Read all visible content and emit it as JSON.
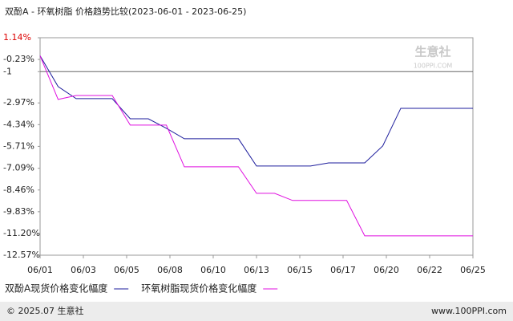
{
  "chart_data": {
    "type": "line",
    "title": "双酚A - 环氧树脂 价格趋势比较(2023-06-01 - 2023-06-25)",
    "watermark": {
      "name": "生意社",
      "site": "100PPI.COM"
    },
    "x": [
      0,
      1,
      2,
      3,
      4,
      5,
      6,
      7,
      8,
      9,
      10,
      11,
      12,
      13,
      14,
      15,
      16,
      17,
      18,
      19,
      20,
      21,
      22,
      23,
      24
    ],
    "xlim": [
      0,
      24
    ],
    "xticks": [
      {
        "value": 0,
        "label": "06/01"
      },
      {
        "value": 2.4,
        "label": "06/03"
      },
      {
        "value": 4.8,
        "label": "06/05"
      },
      {
        "value": 7.2,
        "label": "06/08"
      },
      {
        "value": 9.6,
        "label": "06/10"
      },
      {
        "value": 12,
        "label": "06/13"
      },
      {
        "value": 14.4,
        "label": "06/15"
      },
      {
        "value": 16.8,
        "label": "06/17"
      },
      {
        "value": 19.2,
        "label": "06/20"
      },
      {
        "value": 21.6,
        "label": "06/22"
      },
      {
        "value": 24,
        "label": "06/25"
      }
    ],
    "ylim": [
      -12.57,
      1.14
    ],
    "yticks": [
      {
        "value": 1.14,
        "label": "1.14%"
      },
      {
        "value": -0.23,
        "label": "-0.23%"
      },
      -1,
      {
        "value": -2.97,
        "label": "-2.97%"
      },
      {
        "value": -4.34,
        "label": "-4.34%"
      },
      {
        "value": -5.71,
        "label": "-5.71%"
      },
      {
        "value": -7.09,
        "label": "-7.09%"
      },
      {
        "value": -8.46,
        "label": "-8.46%"
      },
      {
        "value": -9.83,
        "label": "-9.83%"
      },
      {
        "value": -11.2,
        "label": "-11.20%"
      },
      {
        "value": -12.57,
        "label": "-12.57%"
      }
    ],
    "hline": -1,
    "grid": false,
    "series": [
      {
        "name": "双酚A现货价格变化幅度",
        "color": "#1c1c9c",
        "values": [
          0,
          -1.94,
          -2.7,
          -2.7,
          -2.7,
          -3.97,
          -3.97,
          -4.57,
          -5.23,
          -5.23,
          -5.23,
          -5.23,
          -6.95,
          -6.95,
          -6.95,
          -6.95,
          -6.75,
          -6.75,
          -6.75,
          -5.68,
          -3.31,
          -3.31,
          -3.31,
          -3.31,
          -3.31
        ]
      },
      {
        "name": "环氧树脂现货价格变化幅度",
        "color": "#e010e0",
        "values": [
          0,
          -2.75,
          -2.5,
          -2.5,
          -2.5,
          -4.37,
          -4.37,
          -4.37,
          -7.0,
          -7.0,
          -7.0,
          -7.0,
          -8.67,
          -8.67,
          -9.12,
          -9.12,
          -9.12,
          -9.12,
          -11.35,
          -11.35,
          -11.35,
          -11.35,
          -11.35,
          -11.35,
          -11.35
        ]
      }
    ],
    "footer": {
      "left": "© 2025.07 生意社",
      "right": "www.100PPI.com"
    }
  }
}
